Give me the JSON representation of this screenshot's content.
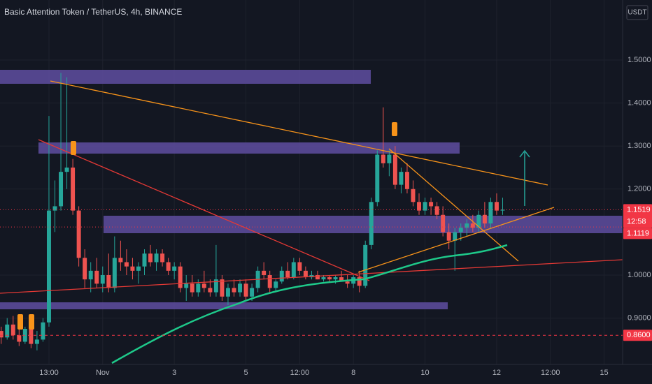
{
  "chart_data": {
    "type": "candlestick",
    "title": "Basic Attention Token / TetherUS, 4h, BINANCE",
    "currency": "USDT",
    "countdown": "12:58",
    "up_color": "#26a69a",
    "down_color": "#ef5350",
    "x": [
      -17,
      -16,
      -15,
      -14,
      -13,
      -12,
      -11,
      -10,
      -9,
      -8,
      -7,
      -6,
      -5,
      -4,
      -3,
      -2,
      -1,
      0,
      1,
      2,
      3,
      4,
      5,
      6,
      7,
      8,
      9,
      10,
      11,
      12,
      13,
      14,
      15,
      16,
      17,
      18,
      19,
      20,
      21,
      22,
      23,
      24,
      25,
      26,
      27,
      28,
      29,
      30,
      31,
      32,
      33,
      34,
      35,
      36,
      37,
      38,
      39,
      40,
      41,
      42,
      43,
      44,
      45,
      46,
      47,
      48,
      49,
      50,
      51,
      52,
      53,
      54,
      55,
      56,
      57,
      58,
      59,
      60,
      61,
      62,
      63,
      64,
      65,
      66,
      67
    ],
    "open": [
      0.87,
      0.855,
      0.885,
      0.86,
      0.845,
      0.875,
      0.84,
      0.85,
      0.89,
      1.15,
      1.16,
      1.24,
      1.25,
      1.15,
      1.04,
      0.99,
      1.01,
      0.98,
      1.0,
      0.97,
      1.04,
      1.03,
      1.02,
      1.01,
      1.02,
      1.05,
      1.03,
      1.05,
      1.03,
      1.01,
      1.02,
      0.97,
      0.98,
      0.96,
      0.98,
      0.97,
      0.96,
      0.99,
      0.95,
      0.97,
      0.96,
      0.98,
      0.95,
      0.97,
      1.01,
      1.0,
      0.97,
      0.985,
      1.01,
      0.995,
      1.03,
      1.01,
      0.995,
      1.0,
      0.99,
      0.995,
      0.99,
      0.995,
      0.985,
      0.98,
      0.995,
      0.975,
      1.07,
      1.17,
      1.28,
      1.26,
      1.28,
      1.21,
      1.24,
      1.2,
      1.17,
      1.15,
      1.17,
      1.16,
      1.14,
      1.1,
      1.08,
      1.1,
      1.11,
      1.12,
      1.11,
      1.14,
      1.12,
      1.17,
      1.15
    ],
    "high": [
      0.88,
      0.9,
      0.905,
      0.88,
      0.88,
      0.89,
      0.87,
      0.9,
      1.37,
      1.22,
      1.47,
      1.46,
      1.27,
      1.16,
      1.06,
      1.03,
      1.04,
      1.02,
      1.05,
      1.09,
      1.08,
      1.06,
      1.04,
      1.03,
      1.06,
      1.07,
      1.06,
      1.06,
      1.04,
      1.03,
      1.03,
      1.0,
      1.0,
      0.99,
      1.01,
      0.99,
      1.07,
      1.0,
      0.98,
      0.99,
      0.99,
      0.99,
      0.98,
      1.02,
      1.03,
      1.01,
      0.99,
      1.02,
      1.03,
      1.04,
      1.04,
      1.02,
      1.01,
      1.01,
      1.0,
      1.0,
      1.0,
      1.01,
      1.0,
      1.0,
      1.01,
      1.08,
      1.18,
      1.29,
      1.39,
      1.29,
      1.3,
      1.25,
      1.26,
      1.22,
      1.19,
      1.18,
      1.18,
      1.17,
      1.16,
      1.12,
      1.11,
      1.12,
      1.13,
      1.14,
      1.15,
      1.17,
      1.18,
      1.19,
      1.18
    ],
    "low": [
      0.84,
      0.85,
      0.85,
      0.835,
      0.84,
      0.83,
      0.825,
      0.845,
      0.88,
      1.1,
      1.15,
      1.2,
      1.14,
      1.02,
      0.97,
      0.96,
      0.97,
      0.96,
      0.96,
      0.96,
      1.01,
      1.0,
      0.99,
      0.98,
      1.0,
      1.02,
      1.01,
      1.02,
      1.0,
      0.99,
      0.96,
      0.94,
      0.95,
      0.95,
      0.96,
      0.95,
      0.95,
      0.94,
      0.93,
      0.95,
      0.95,
      0.94,
      0.94,
      0.96,
      0.99,
      0.96,
      0.96,
      0.98,
      0.99,
      0.99,
      1.0,
      0.99,
      0.99,
      0.99,
      0.985,
      0.985,
      0.98,
      0.99,
      0.97,
      0.97,
      0.96,
      0.97,
      1.06,
      1.16,
      1.25,
      1.23,
      1.2,
      1.19,
      1.19,
      1.16,
      1.14,
      1.14,
      1.14,
      1.13,
      1.09,
      1.06,
      1.01,
      1.08,
      1.09,
      1.1,
      1.1,
      1.11,
      1.11,
      1.14,
      1.14
    ],
    "close": [
      0.855,
      0.885,
      0.86,
      0.845,
      0.875,
      0.84,
      0.85,
      0.89,
      1.15,
      1.16,
      1.24,
      1.25,
      1.15,
      1.04,
      0.99,
      1.01,
      0.98,
      1.0,
      0.97,
      1.04,
      1.03,
      1.02,
      1.01,
      1.02,
      1.05,
      1.03,
      1.05,
      1.03,
      1.01,
      1.02,
      0.97,
      0.98,
      0.96,
      0.98,
      0.97,
      0.96,
      0.99,
      0.95,
      0.97,
      0.96,
      0.98,
      0.95,
      0.97,
      1.01,
      1.0,
      0.97,
      0.985,
      1.01,
      0.995,
      1.03,
      1.01,
      0.995,
      1.0,
      0.99,
      0.995,
      0.99,
      0.995,
      0.985,
      0.98,
      0.995,
      0.975,
      1.07,
      1.17,
      1.28,
      1.26,
      1.28,
      1.21,
      1.24,
      1.2,
      1.17,
      1.15,
      1.17,
      1.16,
      1.14,
      1.1,
      1.08,
      1.1,
      1.11,
      1.12,
      1.11,
      1.14,
      1.12,
      1.17,
      1.15,
      1.1519
    ],
    "xlim": [
      -17.2,
      87.1
    ],
    "xticks": [
      {
        "value": -9,
        "label": "13:00"
      },
      {
        "value": 0,
        "label": "Nov"
      },
      {
        "value": 12,
        "label": "3"
      },
      {
        "value": 24,
        "label": "5"
      },
      {
        "value": 33,
        "label": "12:00"
      },
      {
        "value": 42,
        "label": "8"
      },
      {
        "value": 54,
        "label": "10"
      },
      {
        "value": 66,
        "label": "12"
      },
      {
        "value": 75,
        "label": "12:00"
      },
      {
        "value": 84,
        "label": "15"
      }
    ],
    "ylim": [
      0.7922,
      1.6396
    ],
    "yticks": [
      {
        "value": 0.9,
        "label": "0.9000"
      },
      {
        "value": 1.0,
        "label": "1.0000"
      },
      {
        "value": 1.2,
        "label": "1.2000"
      },
      {
        "value": 1.3,
        "label": "1.3000"
      },
      {
        "value": 1.4,
        "label": "1.4000"
      },
      {
        "value": 1.5,
        "label": "1.5000"
      }
    ],
    "grid": true,
    "price_lines": [
      {
        "value": 1.1519,
        "label": "1.1519",
        "color": "#f23645",
        "dash": "dotted"
      },
      {
        "value": 1.1119,
        "label": "1.1119",
        "color": "#f23645",
        "dash": "dotted"
      },
      {
        "value": 0.86,
        "label": "0.8600",
        "color": "#f23645",
        "dash": "dashed"
      }
    ]
  }
}
